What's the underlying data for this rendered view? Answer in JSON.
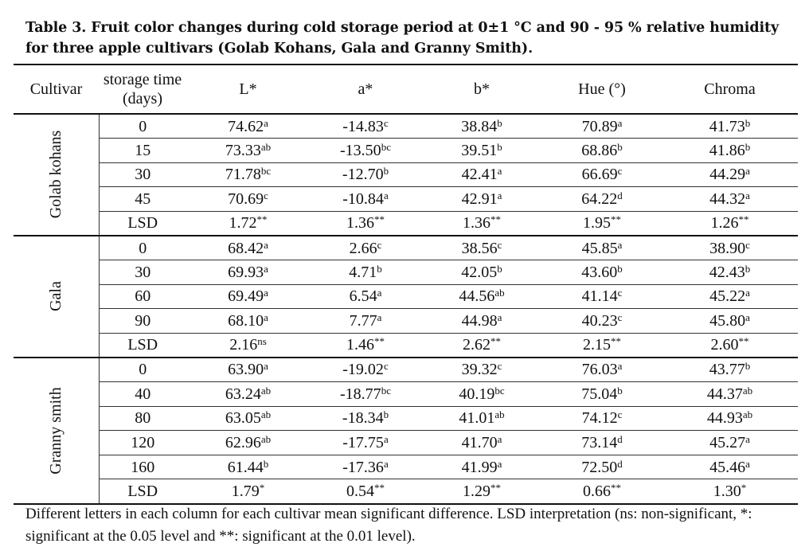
{
  "caption": "Table 3. Fruit color changes during cold storage period at 0±1 °C and 90 - 95 % relative humidity for three apple cultivars (Golab Kohans, Gala and Granny Smith).",
  "headers": {
    "cultivar": "Cultivar",
    "storage_line1": "storage time",
    "storage_line2": "(days)",
    "l": "L*",
    "a": "a*",
    "b": "b*",
    "hue": "Hue (°)",
    "chroma": "Chroma"
  },
  "groups": [
    {
      "name": "Golab kohans",
      "rows": [
        {
          "t": "0",
          "l": "74.62",
          "ls": "a",
          "a": "-14.83",
          "as": "c",
          "b": "38.84",
          "bs": "b",
          "h": "70.89",
          "hs": "a",
          "c": "41.73",
          "cs": "b"
        },
        {
          "t": "15",
          "l": "73.33",
          "ls": "ab",
          "a": "-13.50",
          "as": "bc",
          "b": "39.51",
          "bs": "b",
          "h": "68.86",
          "hs": "b",
          "c": "41.86",
          "cs": "b"
        },
        {
          "t": "30",
          "l": "71.78",
          "ls": "bc",
          "a": "-12.70",
          "as": "b",
          "b": "42.41",
          "bs": "a",
          "h": "66.69",
          "hs": "c",
          "c": "44.29",
          "cs": "a"
        },
        {
          "t": "45",
          "l": "70.69",
          "ls": "c",
          "a": "-10.84",
          "as": "a",
          "b": "42.91",
          "bs": "a",
          "h": "64.22",
          "hs": "d",
          "c": "44.32",
          "cs": "a"
        },
        {
          "t": "LSD",
          "l": "1.72",
          "ls": "**",
          "a": "1.36",
          "as": "**",
          "b": "1.36",
          "bs": "**",
          "h": "1.95",
          "hs": "**",
          "c": "1.26",
          "cs": "**"
        }
      ]
    },
    {
      "name": "Gala",
      "rows": [
        {
          "t": "0",
          "l": "68.42",
          "ls": "a",
          "a": "2.66",
          "as": "c",
          "b": "38.56",
          "bs": "c",
          "h": "45.85",
          "hs": "a",
          "c": "38.90",
          "cs": "c"
        },
        {
          "t": "30",
          "l": "69.93",
          "ls": "a",
          "a": "4.71",
          "as": "b",
          "b": "42.05",
          "bs": "b",
          "h": "43.60",
          "hs": "b",
          "c": "42.43",
          "cs": "b"
        },
        {
          "t": "60",
          "l": "69.49",
          "ls": "a",
          "a": "6.54",
          "as": "a",
          "b": "44.56",
          "bs": "ab",
          "h": "41.14",
          "hs": "c",
          "c": "45.22",
          "cs": "a"
        },
        {
          "t": "90",
          "l": "68.10",
          "ls": "a",
          "a": "7.77",
          "as": "a",
          "b": "44.98",
          "bs": "a",
          "h": "40.23",
          "hs": "c",
          "c": "45.80",
          "cs": "a"
        },
        {
          "t": "LSD",
          "l": "2.16",
          "ls": "ns",
          "a": "1.46",
          "as": "**",
          "b": "2.62",
          "bs": "**",
          "h": "2.15",
          "hs": "**",
          "c": "2.60",
          "cs": "**"
        }
      ]
    },
    {
      "name": "Granny smith",
      "rows": [
        {
          "t": "0",
          "l": "63.90",
          "ls": "a",
          "a": "-19.02",
          "as": "c",
          "b": "39.32",
          "bs": "c",
          "h": "76.03",
          "hs": "a",
          "c": "43.77",
          "cs": "b"
        },
        {
          "t": "40",
          "l": "63.24",
          "ls": "ab",
          "a": "-18.77",
          "as": "bc",
          "b": "40.19",
          "bs": "bc",
          "h": "75.04",
          "hs": "b",
          "c": "44.37",
          "cs": "ab"
        },
        {
          "t": "80",
          "l": "63.05",
          "ls": "ab",
          "a": "-18.34",
          "as": "b",
          "b": "41.01",
          "bs": "ab",
          "h": "74.12",
          "hs": "c",
          "c": "44.93",
          "cs": "ab"
        },
        {
          "t": "120",
          "l": "62.96",
          "ls": "ab",
          "a": "-17.75",
          "as": "a",
          "b": "41.70",
          "bs": "a",
          "h": "73.14",
          "hs": "d",
          "c": "45.27",
          "cs": "a"
        },
        {
          "t": "160",
          "l": "61.44",
          "ls": "b",
          "a": "-17.36",
          "as": "a",
          "b": "41.99",
          "bs": "a",
          "h": "72.50",
          "hs": "d",
          "c": "45.46",
          "cs": "a"
        },
        {
          "t": "LSD",
          "l": "1.79",
          "ls": "*",
          "a": "0.54",
          "as": "**",
          "b": "1.29",
          "bs": "**",
          "h": "0.66",
          "hs": "**",
          "c": "1.30",
          "cs": "*"
        }
      ]
    }
  ],
  "footnote": "Different letters in each column for each cultivar mean significant difference. LSD interpretation (ns: non-significant, *: significant at the 0.05 level and **: significant at the 0.01 level)."
}
